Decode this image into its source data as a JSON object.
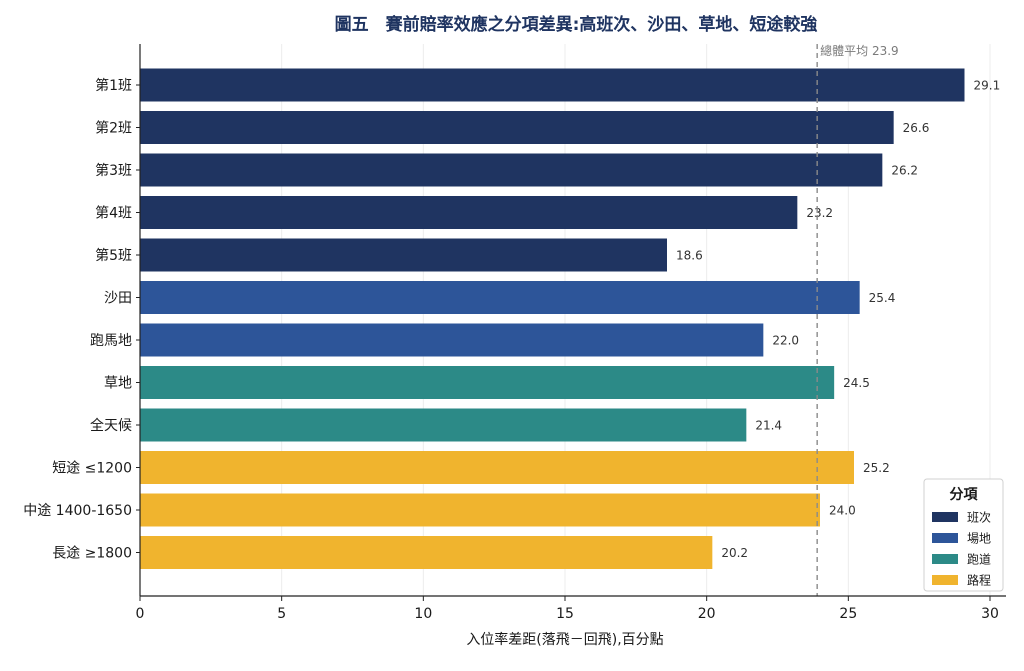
{
  "chart_data": {
    "type": "bar",
    "orientation": "horizontal",
    "title": "圖五　賽前賠率效應之分項差異:高班次、沙田、草地、短途較強",
    "xlabel": "入位率差距(落飛－回飛),百分點",
    "ylabel": "",
    "xlim": [
      0,
      30
    ],
    "xticks": [
      0,
      5,
      10,
      15,
      20,
      25,
      30
    ],
    "grid": "x",
    "categories": [
      "第1班",
      "第2班",
      "第3班",
      "第4班",
      "第5班",
      "沙田",
      "跑馬地",
      "草地",
      "全天候",
      "短途 ≤1200",
      "中途 1400-1650",
      "長途 ≥1800"
    ],
    "values": [
      29.1,
      26.6,
      26.2,
      23.2,
      18.6,
      25.4,
      22.0,
      24.5,
      21.4,
      25.2,
      24.0,
      20.2
    ],
    "value_labels": [
      "29.1",
      "26.6",
      "26.2",
      "23.2",
      "18.6",
      "25.4",
      "22.0",
      "24.5",
      "21.4",
      "25.2",
      "24.0",
      "20.2"
    ],
    "groups": [
      "班次",
      "班次",
      "班次",
      "班次",
      "班次",
      "場地",
      "場地",
      "跑道",
      "跑道",
      "路程",
      "路程",
      "路程"
    ],
    "reference_line": {
      "label": "總體平均 23.9",
      "value": 23.9,
      "style": "dashed",
      "color": "#8a8a8a"
    },
    "legend": {
      "title": "分項",
      "placement": "bottom-right",
      "entries": [
        {
          "name": "班次",
          "color": "#1f3461"
        },
        {
          "name": "場地",
          "color": "#2d5599"
        },
        {
          "name": "跑道",
          "color": "#2c8a87"
        },
        {
          "name": "路程",
          "color": "#f0b42e"
        }
      ]
    },
    "colors": {
      "班次": "#1f3461",
      "場地": "#2d5599",
      "跑道": "#2c8a87",
      "路程": "#f0b42e",
      "title": "#1f3461",
      "grid": "#ececec",
      "axis": "#222222"
    }
  }
}
